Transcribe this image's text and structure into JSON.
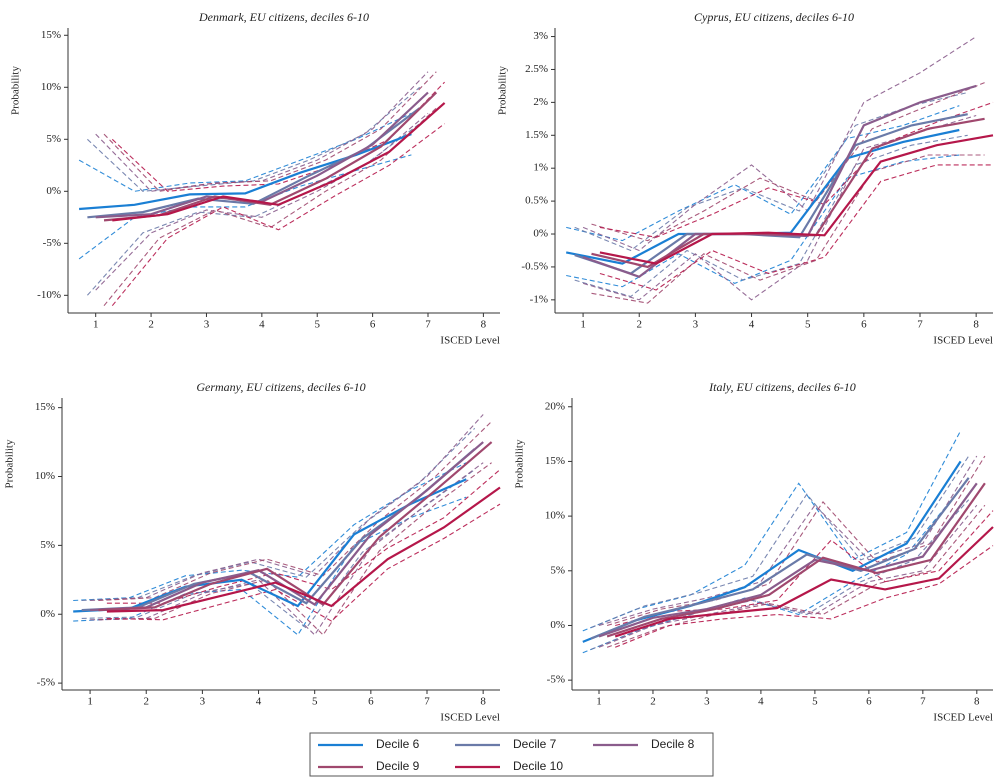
{
  "chart_data": [
    {
      "type": "line",
      "title": "Denmark, EU citizens, deciles 6-10",
      "xlabel": "ISCED Level",
      "ylabel": "Probability",
      "xlim": [
        0.5,
        8.3
      ],
      "xticks": [
        1,
        2,
        3,
        4,
        5,
        6,
        7,
        8
      ],
      "ylim": [
        -11.7,
        15.7
      ],
      "yticks": [
        {
          "value": 15,
          "label": "15%"
        },
        {
          "value": 10,
          "label": "10%"
        },
        {
          "value": 5,
          "label": "5%"
        },
        {
          "value": 0,
          "label": "0%"
        },
        {
          "value": -5,
          "label": "-5%"
        },
        {
          "value": -10,
          "label": "-10%"
        }
      ],
      "series": [
        {
          "name": "Decile 6",
          "color": "#1a7fd4",
          "x": [
            0.7,
            1.7,
            2.7,
            3.7,
            4.7,
            5.7,
            6.7
          ],
          "values": [
            -1.7,
            -1.3,
            -0.3,
            -0.2,
            1.8,
            3.5,
            5.5
          ],
          "lower": [
            -6.5,
            -2.5,
            -1.5,
            -1.5,
            0.5,
            2.0,
            3.5
          ],
          "upper": [
            3,
            0,
            0.8,
            1,
            3,
            5,
            7.5
          ]
        },
        {
          "name": "Decile 7",
          "color": "#6a7aa8",
          "x": [
            0.85,
            1.85,
            2.85,
            3.85,
            4.85,
            5.85,
            6.85
          ],
          "values": [
            -2.5,
            -2,
            -0.7,
            -1.2,
            1.5,
            4,
            8
          ],
          "lower": [
            -10,
            -4,
            -2,
            -2.5,
            0,
            2.5,
            6.5
          ],
          "upper": [
            5,
            0,
            0.5,
            1,
            3,
            5.5,
            10
          ]
        },
        {
          "name": "Decile 8",
          "color": "#8a5c8c",
          "x": [
            1,
            2,
            3,
            4,
            5,
            6,
            7
          ],
          "values": [
            -2.5,
            -2.2,
            -0.5,
            -1,
            1.5,
            4.5,
            9.5
          ],
          "lower": [
            -9.5,
            -4,
            -1.8,
            -2.5,
            0,
            3,
            7.5
          ],
          "upper": [
            5.5,
            0,
            0.7,
            1,
            3,
            6,
            11.5
          ]
        },
        {
          "name": "Decile 9",
          "color": "#a0486e",
          "x": [
            1.15,
            2.15,
            3.15,
            4.15,
            5.15,
            6.15,
            7.15
          ],
          "values": [
            -2.8,
            -2.3,
            -0.5,
            -1.3,
            1.2,
            4.3,
            9.5
          ],
          "lower": [
            -11,
            -4.5,
            -1.8,
            -3.5,
            0,
            3,
            8
          ],
          "upper": [
            5.5,
            0,
            0.8,
            1,
            3,
            6,
            11.5
          ]
        },
        {
          "name": "Decile 10",
          "color": "#b5174a",
          "x": [
            1.3,
            2.3,
            3.3,
            4.3,
            5.3,
            6.3,
            7.3
          ],
          "values": [
            -2.8,
            -2.2,
            -0.5,
            -1.3,
            1,
            3.8,
            8.5
          ],
          "lower": [
            -11,
            -4.5,
            -1.5,
            -3.7,
            -0.5,
            2.5,
            6.5
          ],
          "upper": [
            5,
            0,
            0.5,
            0.7,
            2.5,
            5,
            10.5
          ]
        }
      ]
    },
    {
      "type": "line",
      "title": "Cyprus, EU citizens, deciles 6-10",
      "xlabel": "ISCED Level",
      "ylabel": "Probability",
      "xlim": [
        0.5,
        8.3
      ],
      "xticks": [
        1,
        2,
        3,
        4,
        5,
        6,
        7,
        8
      ],
      "ylim": [
        -1.2,
        3.13
      ],
      "yticks": [
        {
          "value": 3,
          "label": "3%"
        },
        {
          "value": 2.5,
          "label": "2.5%"
        },
        {
          "value": 2,
          "label": "2%"
        },
        {
          "value": 1.5,
          "label": "1.5%"
        },
        {
          "value": 1,
          "label": "1%"
        },
        {
          "value": 0.5,
          "label": "0.5%"
        },
        {
          "value": 0,
          "label": "0%"
        },
        {
          "value": -0.5,
          "label": "-0.5%"
        },
        {
          "value": -1,
          "label": "-1%"
        }
      ],
      "series": [
        {
          "name": "Decile 6",
          "color": "#1a7fd4",
          "x": [
            0.7,
            1.7,
            2.7,
            3.7,
            4.7,
            5.7,
            6.7,
            7.7
          ],
          "values": [
            -0.28,
            -0.45,
            0,
            0,
            0.02,
            1.15,
            1.4,
            1.58
          ],
          "lower": [
            -0.63,
            -0.8,
            -0.3,
            -0.75,
            -0.4,
            0.85,
            1.1,
            1.2
          ],
          "upper": [
            0.1,
            -0.1,
            0.35,
            0.75,
            0.3,
            1.45,
            1.65,
            1.95
          ]
        },
        {
          "name": "Decile 7",
          "color": "#6a7aa8",
          "x": [
            0.85,
            1.85,
            2.85,
            3.85,
            4.85,
            5.85,
            6.85,
            7.85
          ],
          "values": [
            -0.32,
            -0.6,
            0,
            0,
            -0.05,
            1.35,
            1.65,
            1.82
          ],
          "lower": [
            -0.7,
            -0.95,
            -0.25,
            -0.7,
            -0.45,
            1.05,
            1.35,
            1.5
          ],
          "upper": [
            0.1,
            -0.25,
            0.4,
            0.7,
            0.35,
            1.65,
            1.95,
            2.15
          ]
        },
        {
          "name": "Decile 8",
          "color": "#8a5c8c",
          "x": [
            1,
            2,
            3,
            4,
            5,
            6,
            7,
            8
          ],
          "values": [
            -0.35,
            -0.65,
            0,
            0,
            -0.03,
            1.65,
            2.0,
            2.25
          ],
          "lower": [
            -0.75,
            -1.0,
            -0.3,
            -1.0,
            -0.4,
            1.3,
            1.55,
            1.8
          ],
          "upper": [
            0.1,
            -0.25,
            0.45,
            1.05,
            0.35,
            2.0,
            2.45,
            3.0
          ]
        },
        {
          "name": "Decile 9",
          "color": "#a0486e",
          "x": [
            1.15,
            2.15,
            3.15,
            4.15,
            5.15,
            6.15,
            7.15,
            8.15
          ],
          "values": [
            -0.3,
            -0.5,
            0,
            0,
            -0.02,
            1.3,
            1.6,
            1.75
          ],
          "lower": [
            -0.9,
            -1.05,
            -0.3,
            -0.7,
            -0.4,
            0.95,
            1.2,
            1.2
          ],
          "upper": [
            0.15,
            -0.1,
            0.35,
            0.85,
            0.5,
            1.6,
            1.95,
            2.3
          ]
        },
        {
          "name": "Decile 10",
          "color": "#b5174a",
          "x": [
            1.3,
            2.3,
            3.3,
            4.3,
            5.3,
            6.3,
            7.3,
            8.3
          ],
          "values": [
            -0.28,
            -0.45,
            0,
            0.02,
            -0.02,
            1.1,
            1.35,
            1.5
          ],
          "lower": [
            -0.6,
            -0.85,
            -0.25,
            -0.6,
            -0.35,
            0.8,
            1.05,
            1.05
          ],
          "upper": [
            0.1,
            -0.05,
            0.3,
            0.7,
            0.45,
            1.35,
            1.7,
            2.0
          ]
        }
      ]
    },
    {
      "type": "line",
      "title": "Germany, EU citizens, deciles 6-10",
      "xlabel": "ISCED Level",
      "ylabel": "Probability",
      "xlim": [
        0.5,
        8.3
      ],
      "xticks": [
        1,
        2,
        3,
        4,
        5,
        6,
        7,
        8
      ],
      "ylim": [
        -5.5,
        15.7
      ],
      "yticks": [
        {
          "value": 15,
          "label": "15%"
        },
        {
          "value": 10,
          "label": "10%"
        },
        {
          "value": 5,
          "label": "5%"
        },
        {
          "value": 0,
          "label": "0%"
        },
        {
          "value": -5,
          "label": "-5%"
        }
      ],
      "series": [
        {
          "name": "Decile 6",
          "color": "#1a7fd4",
          "x": [
            0.7,
            1.7,
            2.7,
            3.7,
            4.7,
            5.7,
            6.7,
            7.7
          ],
          "values": [
            0.2,
            0.4,
            2,
            2.5,
            0.6,
            5.8,
            8,
            9.8
          ],
          "lower": [
            -0.5,
            -0.3,
            1.5,
            1.8,
            -1.5,
            5,
            7,
            8.5
          ],
          "upper": [
            1,
            1.2,
            2.8,
            3.2,
            2.7,
            6.5,
            9,
            11
          ]
        },
        {
          "name": "Decile 7",
          "color": "#6a7aa8",
          "x": [
            0.85,
            1.85,
            2.85,
            3.85,
            4.85,
            5.85,
            6.85,
            7.85
          ],
          "values": [
            0.3,
            0.5,
            2.2,
            3,
            0.8,
            5.5,
            8.5,
            12
          ],
          "lower": [
            -0.3,
            -0.2,
            1.5,
            2.2,
            -1,
            4.5,
            7.5,
            10.5
          ],
          "upper": [
            1,
            1.2,
            2.8,
            3.8,
            2.7,
            6.5,
            9.5,
            13.5
          ]
        },
        {
          "name": "Decile 8",
          "color": "#8a5c8c",
          "x": [
            1,
            2,
            3,
            4,
            5,
            6,
            7,
            8
          ],
          "values": [
            0.3,
            0.5,
            2.3,
            3.2,
            0.7,
            5.8,
            9,
            12.5
          ],
          "lower": [
            -0.4,
            -0.3,
            1.5,
            2.5,
            -1.5,
            4.8,
            8,
            11
          ],
          "upper": [
            1,
            1.2,
            3,
            4,
            2.8,
            7,
            10,
            14.5
          ]
        },
        {
          "name": "Decile 9",
          "color": "#a0486e",
          "x": [
            1.15,
            2.15,
            3.15,
            4.15,
            5.15,
            6.15,
            7.15,
            8.15
          ],
          "values": [
            0.3,
            0.5,
            2.2,
            3.3,
            0.7,
            5.6,
            9,
            12.5
          ],
          "lower": [
            -0.4,
            -0.3,
            1.5,
            2.5,
            -1.5,
            4.6,
            8,
            11
          ],
          "upper": [
            1,
            1.2,
            3,
            4,
            2.8,
            6.8,
            10,
            14
          ]
        },
        {
          "name": "Decile 10",
          "color": "#b5174a",
          "x": [
            1.3,
            2.3,
            3.3,
            4.3,
            5.3,
            6.3,
            7.3,
            8.3
          ],
          "values": [
            0.2,
            0.3,
            1.3,
            2.3,
            0.6,
            4,
            6.3,
            9.2
          ],
          "lower": [
            -0.3,
            -0.4,
            0.7,
            1.8,
            -0.5,
            3.3,
            5.5,
            8
          ],
          "upper": [
            0.8,
            0.8,
            2,
            3,
            1.8,
            4.8,
            7,
            10.5
          ]
        }
      ]
    },
    {
      "type": "line",
      "title": "Italy, EU citizens, deciles 6-10",
      "xlabel": "ISCED Level",
      "ylabel": "Probability",
      "xlim": [
        0.5,
        8.3
      ],
      "xticks": [
        1,
        2,
        3,
        4,
        5,
        6,
        7,
        8
      ],
      "ylim": [
        -5.9,
        20.8
      ],
      "yticks": [
        {
          "value": 20,
          "label": "20%"
        },
        {
          "value": 15,
          "label": "15%"
        },
        {
          "value": 10,
          "label": "10%"
        },
        {
          "value": 5,
          "label": "5%"
        },
        {
          "value": 0,
          "label": "0%"
        },
        {
          "value": -5,
          "label": "-5%"
        }
      ],
      "series": [
        {
          "name": "Decile 6",
          "color": "#1a7fd4",
          "x": [
            0.7,
            1.7,
            2.7,
            3.7,
            4.7,
            5.7,
            6.7,
            7.7
          ],
          "values": [
            -1.5,
            0.5,
            1.8,
            3.5,
            6.9,
            5,
            7.5,
            15
          ],
          "lower": [
            -2.5,
            -0.5,
            1,
            2.5,
            1,
            4,
            6.5,
            12.5
          ],
          "upper": [
            -0.5,
            1.5,
            2.8,
            5.5,
            13,
            6,
            8.5,
            17.8
          ]
        },
        {
          "name": "Decile 7",
          "color": "#6a7aa8",
          "x": [
            0.85,
            1.85,
            2.85,
            3.85,
            4.85,
            5.85,
            6.85,
            7.85
          ],
          "values": [
            -1.2,
            0.8,
            2,
            3.3,
            6.5,
            5,
            7,
            13.5
          ],
          "lower": [
            -2.2,
            -0.2,
            1.2,
            2.3,
            1,
            4,
            6,
            11.5
          ],
          "upper": [
            -0.2,
            1.8,
            3,
            4.5,
            12,
            6,
            8,
            15.5
          ]
        },
        {
          "name": "Decile 8",
          "color": "#8a5c8c",
          "x": [
            1,
            2,
            3,
            4,
            5,
            6,
            7,
            8
          ],
          "values": [
            -1,
            0.7,
            1.5,
            2.8,
            6,
            5,
            6.3,
            13
          ],
          "lower": [
            -2,
            0,
            1,
            2,
            1,
            4,
            5,
            11
          ],
          "upper": [
            0,
            1.5,
            2.5,
            4,
            11,
            6,
            7.5,
            15.5
          ]
        },
        {
          "name": "Decile 9",
          "color": "#a0486e",
          "x": [
            1.15,
            2.15,
            3.15,
            4.15,
            5.15,
            6.15,
            7.15,
            8.15
          ],
          "values": [
            -1,
            0.6,
            1.5,
            2.8,
            6.2,
            4.8,
            6,
            13
          ],
          "lower": [
            -2,
            -0.2,
            1,
            2,
            1,
            3.8,
            5,
            11
          ],
          "upper": [
            0,
            1.5,
            2.3,
            3.8,
            11.3,
            5.8,
            7.5,
            15.5
          ]
        },
        {
          "name": "Decile 10",
          "color": "#b5174a",
          "x": [
            1.3,
            2.3,
            3.3,
            4.3,
            5.3,
            6.3,
            7.3,
            8.3
          ],
          "values": [
            -1,
            0.6,
            1.1,
            1.6,
            4.2,
            3.3,
            4.3,
            9
          ],
          "lower": [
            -2,
            0,
            0.6,
            1,
            0.6,
            2.5,
            3.8,
            7.3
          ],
          "upper": [
            0,
            1.3,
            1.5,
            2.3,
            7.8,
            4,
            5,
            10.5
          ]
        }
      ]
    }
  ]
}
